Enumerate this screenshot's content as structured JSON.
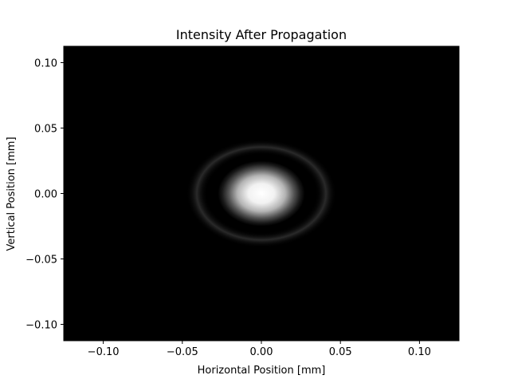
{
  "chart_data": {
    "type": "heatmap",
    "title": "Intensity After Propagation",
    "xlabel": "Horizontal Position [mm]",
    "ylabel": "Vertical Position [mm]",
    "xlim": [
      -0.125,
      0.125
    ],
    "ylim": [
      -0.1125,
      0.1125
    ],
    "xticks": [
      -0.1,
      -0.05,
      0.0,
      0.05,
      0.1
    ],
    "xtick_labels": [
      "−0.10",
      "−0.05",
      "0.00",
      "0.05",
      "0.10"
    ],
    "yticks": [
      -0.1,
      -0.05,
      0.0,
      0.05,
      0.1
    ],
    "ytick_labels": [
      "−0.10",
      "−0.05",
      "0.00",
      "0.05",
      "0.10"
    ],
    "colormap": "gray",
    "background_color": "#000000",
    "grid": false,
    "features": {
      "central_spot": {
        "x_center": 0.0,
        "y_center": 0.0,
        "radius_x": 0.022,
        "radius_y": 0.02,
        "peak_intensity": 1.0
      },
      "ring": {
        "x_center": 0.0,
        "y_center": 0.0,
        "radius_x": 0.038,
        "radius_y": 0.033,
        "relative_intensity": 0.04
      }
    }
  }
}
